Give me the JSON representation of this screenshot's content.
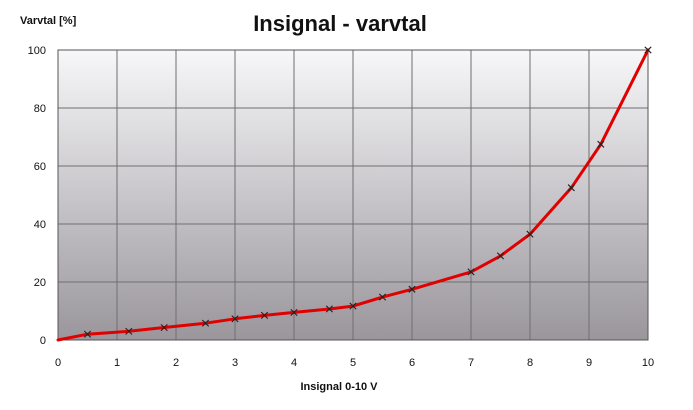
{
  "chart_data": {
    "type": "line",
    "title": "Insignal - varvtal",
    "xlabel": "Insignal 0-10 V",
    "ylabel": "Varvtal  [%]",
    "xlim": [
      0,
      10
    ],
    "ylim": [
      0,
      100
    ],
    "x_ticks": [
      "0",
      "1",
      "2",
      "3",
      "4",
      "5",
      "6",
      "7",
      "8",
      "9",
      "10"
    ],
    "y_ticks": [
      "0",
      "20",
      "40",
      "60",
      "80",
      "100"
    ],
    "grid": true,
    "series": [
      {
        "x": [
          0,
          0.5,
          1.2,
          1.8,
          2.5,
          3.0,
          3.5,
          4.0,
          4.6,
          5.0,
          5.5,
          6.0,
          7.0,
          7.5,
          8.0,
          8.7,
          9.2,
          10.0
        ],
        "y": [
          0,
          2,
          3,
          4.3,
          5.8,
          7.3,
          8.5,
          9.5,
          10.7,
          11.7,
          14.8,
          17.5,
          23.5,
          29,
          36.5,
          52.5,
          67.5,
          100
        ],
        "color": "#e00000"
      }
    ]
  }
}
